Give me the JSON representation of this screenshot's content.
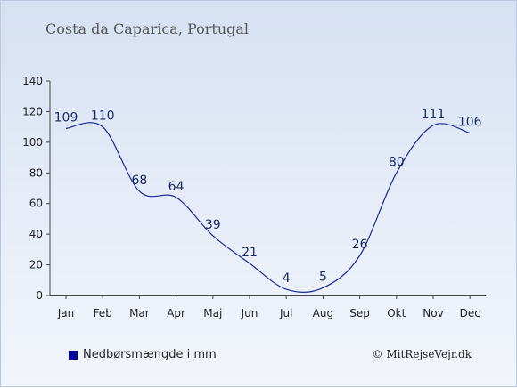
{
  "page": {
    "title": "Costa da Caparica, Portugal",
    "credit": "© MitRejseVejr.dk"
  },
  "colors": {
    "line": "#1a2a9a",
    "legend_swatch": "#0000a0",
    "axis": "#444444",
    "label": "#1a2a6a"
  },
  "chart_data": {
    "type": "line",
    "categories": [
      "Jan",
      "Feb",
      "Mar",
      "Apr",
      "Maj",
      "Jun",
      "Jul",
      "Aug",
      "Sep",
      "Okt",
      "Nov",
      "Dec"
    ],
    "series": [
      {
        "name": "Nedbørsmængde i mm",
        "values": [
          109,
          110,
          68,
          64,
          39,
          21,
          4,
          5,
          26,
          80,
          111,
          106
        ]
      }
    ],
    "ylim": [
      0,
      140
    ],
    "yticks": [
      0,
      20,
      40,
      60,
      80,
      100,
      120,
      140
    ],
    "grid": false,
    "legend_position": "bottom-left"
  }
}
